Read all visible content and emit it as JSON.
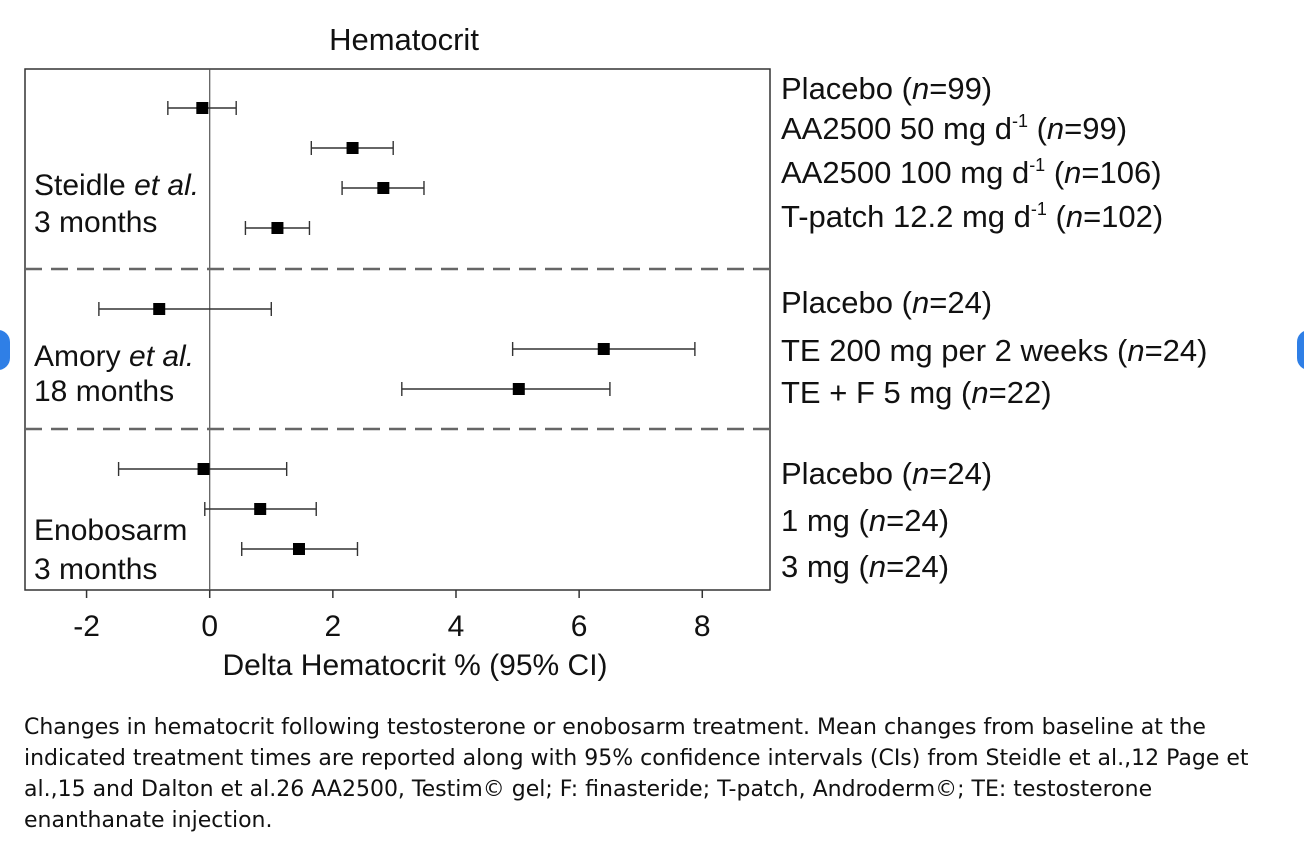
{
  "chart_data": {
    "type": "forest",
    "title": "Hematocrit",
    "xlabel": "Delta Hematocrit % (95% CI)",
    "xlim": [
      -3.0,
      9.1
    ],
    "xticks": [
      "-2",
      "0",
      "2",
      "4",
      "6",
      "8"
    ],
    "xtick_values": [
      -2,
      0,
      2,
      4,
      6,
      8
    ],
    "reference_line": 0,
    "groups": [
      {
        "label_line1_pre": "Steidle ",
        "label_line1_italic": "et al.",
        "label_line2": "3 months",
        "rows": [
          {
            "label": "Placebo",
            "n": "99",
            "mean": -0.12,
            "low": -0.68,
            "high": 0.43
          },
          {
            "label": "AA2500 50 mg d",
            "sup": "-1",
            "n": "99",
            "mean": 2.32,
            "low": 1.65,
            "high": 2.98
          },
          {
            "label": "AA2500 100 mg d",
            "sup": "-1",
            "n": "106",
            "mean": 2.82,
            "low": 2.15,
            "high": 3.48
          },
          {
            "label": "T-patch  12.2 mg d",
            "sup": "-1",
            "n": "102",
            "mean": 1.1,
            "low": 0.58,
            "high": 1.62
          }
        ]
      },
      {
        "label_line1_pre": "Amory ",
        "label_line1_italic": "et al.",
        "label_line2": "18 months",
        "rows": [
          {
            "label": "Placebo",
            "n": "24",
            "mean": -0.82,
            "low": -1.8,
            "high": 1.0
          },
          {
            "label": "TE 200 mg per 2 weeks",
            "n": "24",
            "mean": 6.4,
            "low": 4.92,
            "high": 7.88
          },
          {
            "label": "TE + F 5 mg",
            "n": "22",
            "mean": 5.02,
            "low": 3.12,
            "high": 6.5
          }
        ]
      },
      {
        "label_line1_pre": "Enobosarm",
        "label_line1_italic": "",
        "label_line2": "3 months",
        "rows": [
          {
            "label": "Placebo",
            "n": "24",
            "mean": -0.1,
            "low": -1.48,
            "high": 1.25
          },
          {
            "label": "1 mg",
            "n": "24",
            "mean": 0.82,
            "low": -0.08,
            "high": 1.73
          },
          {
            "label": "3 mg",
            "n": "24",
            "mean": 1.45,
            "low": 0.52,
            "high": 2.4
          }
        ]
      }
    ]
  },
  "caption": "Changes in hematocrit following testosterone or enobosarm treatment. Mean changes from baseline at the indicated treatment times are reported along with 95% confidence intervals (CIs) from Steidle et al.,12 Page et al.,15 and Dalton et al.26 AA2500, Testim© gel; F: finasteride; T-patch, Androderm©; TE: testosterone enanthanate injection."
}
